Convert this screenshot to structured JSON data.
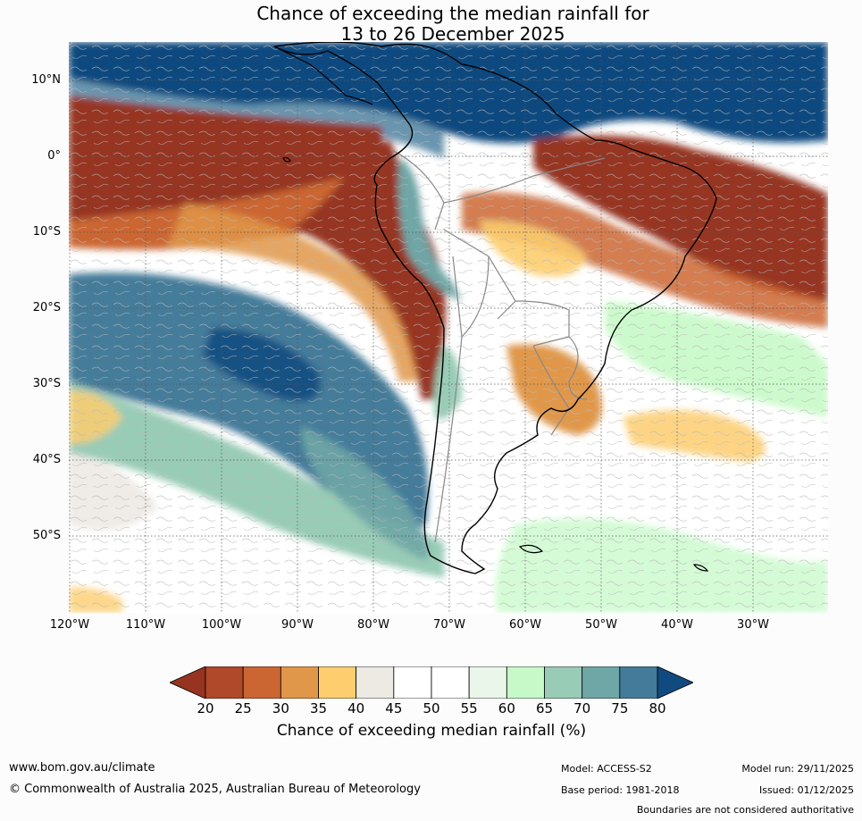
{
  "title": {
    "line1": "Chance of exceeding the median rainfall for",
    "line2": "13 to 26 December 2025"
  },
  "map": {
    "lat_labels": [
      "10°N",
      "0°",
      "10°S",
      "20°S",
      "30°S",
      "40°S",
      "50°S"
    ],
    "lon_labels": [
      "120°W",
      "110°W",
      "100°W",
      "90°W",
      "80°W",
      "70°W",
      "60°W",
      "50°W",
      "40°W",
      "30°W"
    ],
    "gridlines": "dotted",
    "coastline_color": "#000000",
    "border_color": "#888888"
  },
  "colorbar": {
    "ticks": [
      "20",
      "25",
      "30",
      "35",
      "40",
      "45",
      "50",
      "55",
      "60",
      "65",
      "70",
      "75",
      "80"
    ],
    "colors": [
      "#963421",
      "#b0482a",
      "#cb6633",
      "#e19749",
      "#fdcd6e",
      "#ede9e3",
      "#ffffff",
      "#ffffff",
      "#ebf6eb",
      "#c6f9c7",
      "#98ccb6",
      "#6fa6a6",
      "#457b9a",
      "#114a7f"
    ],
    "extend": "both",
    "label": "Chance of exceeding median rainfall (%)"
  },
  "footer": {
    "url": "www.bom.gov.au/climate",
    "copyright": "© Commonwealth of Australia 2025, Australian Bureau of Meteorology",
    "model": "Model: ACCESS-S2",
    "base_period": "Base period: 1981-2018",
    "model_run": "Model run: 29/11/2025",
    "issued": "Issued: 01/12/2025",
    "boundaries": "Boundaries are not considered authoritative"
  }
}
